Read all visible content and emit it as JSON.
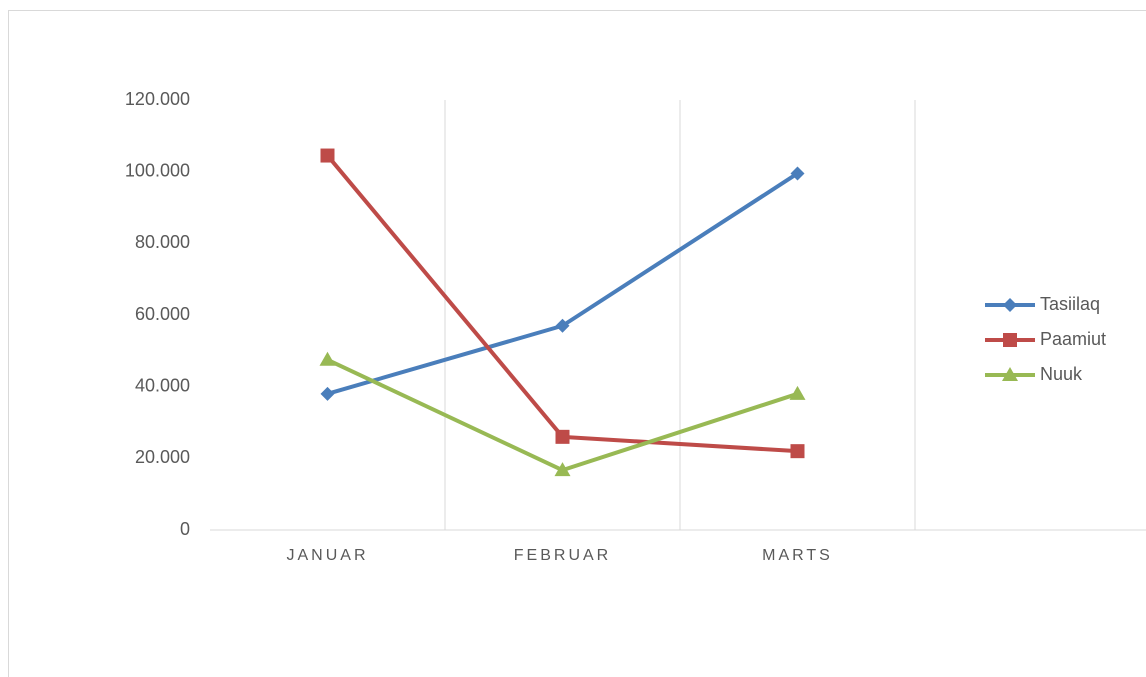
{
  "chart_data": {
    "type": "line",
    "categories": [
      "JANUAR",
      "FEBRUAR",
      "MARTS",
      null
    ],
    "series": [
      {
        "name": "Tasiilaq",
        "color": "#4a7ebb",
        "marker": "diamond",
        "values": [
          38000,
          57000,
          99500,
          null
        ]
      },
      {
        "name": "Paamiut",
        "color": "#be4b48",
        "marker": "square",
        "values": [
          104500,
          26000,
          22000,
          null
        ]
      },
      {
        "name": "Nuuk",
        "color": "#98b954",
        "marker": "triangle",
        "values": [
          47500,
          16700,
          38000,
          null
        ]
      }
    ],
    "ylim": [
      0,
      120000
    ],
    "yticks": [
      0,
      {
        "value": 20000,
        "label": "20.000"
      },
      {
        "value": 40000,
        "label": "40.000"
      },
      {
        "value": 60000,
        "label": "60.000"
      },
      {
        "value": 80000,
        "label": "80.000"
      },
      {
        "value": 100000,
        "label": "100.000"
      },
      {
        "value": 120000,
        "label": "120.000"
      }
    ],
    "grid": true,
    "legend": "right"
  }
}
